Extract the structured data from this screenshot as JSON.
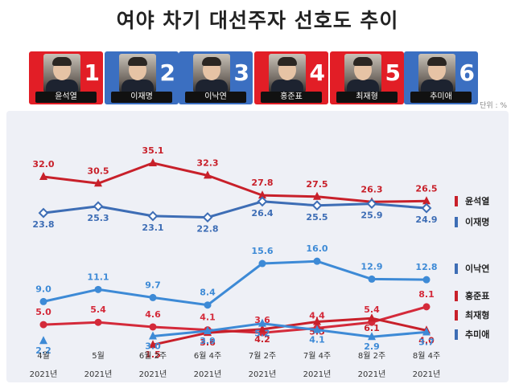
{
  "title": "여야 차기 대선주자 선호도 추이",
  "unit": "단위 : %",
  "candidates": [
    {
      "name": "윤석열",
      "number": "1",
      "color": "#e21e26"
    },
    {
      "name": "이재명",
      "number": "2",
      "color": "#3b6fc1"
    },
    {
      "name": "이낙연",
      "number": "3",
      "color": "#3b6fc1"
    },
    {
      "name": "홍준표",
      "number": "4",
      "color": "#e21e26"
    },
    {
      "name": "최재형",
      "number": "5",
      "color": "#e21e26"
    },
    {
      "name": "추미애",
      "number": "6",
      "color": "#3b6fc1"
    }
  ],
  "chart_data": {
    "type": "line",
    "x": [
      "4월",
      "5월",
      "6월 2주",
      "6월 4주",
      "7월 2주",
      "7월 4주",
      "8월 2주",
      "8월 4주"
    ],
    "x_sub": [
      "2021년",
      "2021년",
      "2021년",
      "2021년",
      "2021년",
      "2021년",
      "2021년",
      "2021년"
    ],
    "groups": [
      {
        "ylim": [
          20,
          36
        ],
        "series": [
          {
            "name": "윤석열",
            "color": "#c8202a",
            "marker": "triangle",
            "values": [
              32.0,
              30.5,
              35.1,
              32.3,
              27.8,
              27.5,
              26.3,
              26.5
            ],
            "labels": [
              "32.0",
              "30.5",
              "35.1",
              "32.3",
              "27.8",
              "27.5",
              "26.3",
              "26.5"
            ]
          },
          {
            "name": "이재명",
            "color": "#3d6db5",
            "marker": "diamond",
            "values": [
              23.8,
              25.3,
              23.1,
              22.8,
              26.4,
              25.5,
              25.9,
              24.9
            ],
            "labels": [
              "23.8",
              "25.3",
              "23.1",
              "22.8",
              "26.4",
              "25.5",
              "25.9",
              "24.9"
            ]
          }
        ]
      },
      {
        "ylim": [
          0,
          17
        ],
        "series": [
          {
            "name": "이낙연",
            "color": "#3d8ad6",
            "marker": "circle",
            "values": [
              9.0,
              11.1,
              9.7,
              8.4,
              15.6,
              16.0,
              12.9,
              12.8
            ],
            "labels": [
              "9.0",
              "11.1",
              "9.7",
              "8.4",
              "15.6",
              "16.0",
              "12.9",
              "12.8"
            ]
          },
          {
            "name": "홍준표",
            "color": "#d42a3a",
            "marker": "circle",
            "values": [
              5.0,
              5.4,
              4.6,
              4.1,
              3.6,
              4.4,
              5.4,
              8.1
            ],
            "labels": [
              "5.0",
              "5.4",
              "4.6",
              "4.1",
              "3.6",
              "4.4",
              "5.4",
              "8.1"
            ]
          },
          {
            "name": "최재형",
            "color": "#c8202a",
            "marker": "triangle",
            "values": [
              null,
              null,
              1.5,
              3.6,
              4.2,
              5.5,
              6.1,
              4.0
            ],
            "labels": [
              "",
              "",
              "1.5",
              "3.6",
              "4.2",
              "5.5",
              "6.1",
              "4.0"
            ]
          },
          {
            "name": "추미애",
            "color": "#3d8ad6",
            "marker": "triangle",
            "values": [
              2.2,
              null,
              3.0,
              3.9,
              5.2,
              4.1,
              2.9,
              3.7
            ],
            "labels": [
              "2.2",
              "",
              "3.0",
              "3.9",
              "5.2",
              "4.1",
              "2.9",
              "3.7"
            ]
          }
        ]
      }
    ],
    "legend_order": [
      "윤석열",
      "이재명",
      "이낙연",
      "홍준표",
      "최재형",
      "추미애"
    ],
    "legend_colors": [
      "#c8202a",
      "#3d6db5",
      "#3d6db5",
      "#c8202a",
      "#c8202a",
      "#3d6db5"
    ],
    "grid": false,
    "legend": "right"
  }
}
